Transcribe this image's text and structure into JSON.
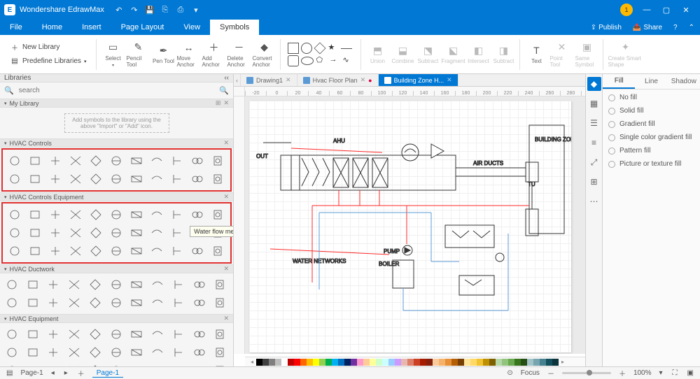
{
  "app": {
    "name": "Wondershare EdrawMax"
  },
  "menubar": {
    "tabs": [
      "File",
      "Home",
      "Insert",
      "Page Layout",
      "View",
      "Symbols"
    ],
    "active_index": 5,
    "publish": "Publish",
    "share": "Share"
  },
  "ribbon": {
    "new_library": "New Library",
    "predefine_libraries": "Predefine Libraries",
    "select": "Select",
    "pencil": "Pencil Tool",
    "pen": "Pen Tool",
    "move_anchor": "Move Anchor",
    "add_anchor": "Add Anchor",
    "delete_anchor": "Delete Anchor",
    "convert_anchor": "Convert Anchor",
    "union": "Union",
    "combine": "Combine",
    "subtract": "Subtract",
    "fragment": "Fragment",
    "intersect": "Intersect",
    "subtract2": "Subtract",
    "text": "Text",
    "point_tool": "Point Tool",
    "same_symbol": "Same Symbol",
    "create_smart_shape": "Create Smart Shape"
  },
  "sidebar": {
    "title": "Libraries",
    "search_placeholder": "search",
    "sections": {
      "my_library": "My Library",
      "placeholder": "Add symbols to the library using the above \"Import\" or \"Add\" icon.",
      "hvac_controls": "HVAC Controls",
      "hvac_controls_equipment": "HVAC Controls Equipment",
      "hvac_ductwork": "HVAC Ductwork",
      "hvac_equipment": "HVAC Equipment"
    },
    "tooltip": "Water flow meter"
  },
  "doc_tabs": {
    "tabs": [
      "Drawing1",
      "Hvac Floor Plan",
      "Building Zone H..."
    ],
    "active_index": 2
  },
  "ruler_values": [
    -20,
    0,
    20,
    40,
    60,
    80,
    100,
    120,
    140,
    160,
    180,
    200,
    220,
    240,
    260,
    280,
    300
  ],
  "diagram": {
    "labels": {
      "out": "OUT",
      "ahu": "AHU",
      "air_ducts": "AIR DUCTS",
      "building_zone": "BUILDING ZONE",
      "tu": "TU",
      "water_networks": "WATER NETWORKS",
      "pump": "PUMP",
      "boiler": "BOILER"
    },
    "colors": {
      "stroke": "#333333",
      "red_line": "#ff2a2a",
      "blue_line": "#5b9bd5",
      "highlight_box": "#e03030"
    }
  },
  "color_swatches": [
    "#000000",
    "#3f3f3f",
    "#7f7f7f",
    "#bfbfbf",
    "#ffffff",
    "#c00000",
    "#ff0000",
    "#ff6600",
    "#ffc000",
    "#ffff00",
    "#92d050",
    "#00b050",
    "#00b0f0",
    "#0070c0",
    "#002060",
    "#7030a0",
    "#ff99cc",
    "#ffcc99",
    "#ffff99",
    "#ccffcc",
    "#ccffff",
    "#99ccff",
    "#cc99ff",
    "#e6b8af",
    "#dd7e6b",
    "#cc4125",
    "#a61c00",
    "#85200c",
    "#f9cb9c",
    "#f6b26b",
    "#e69138",
    "#b45f06",
    "#783f04",
    "#ffe599",
    "#ffd966",
    "#f1c232",
    "#bf9000",
    "#7f6000",
    "#b6d7a8",
    "#93c47d",
    "#6aa84f",
    "#38761d",
    "#274e13",
    "#a2c4c9",
    "#76a5af",
    "#45818e",
    "#134f5c",
    "#0c343d"
  ],
  "rightpanel": {
    "tabs": [
      "Fill",
      "Line",
      "Shadow"
    ],
    "active_index": 0,
    "options": [
      "No fill",
      "Solid fill",
      "Gradient fill",
      "Single color gradient fill",
      "Pattern fill",
      "Picture or texture fill"
    ]
  },
  "statusbar": {
    "page_label": "Page-1",
    "page_tab": "Page-1",
    "focus": "Focus",
    "zoom": "100%"
  }
}
